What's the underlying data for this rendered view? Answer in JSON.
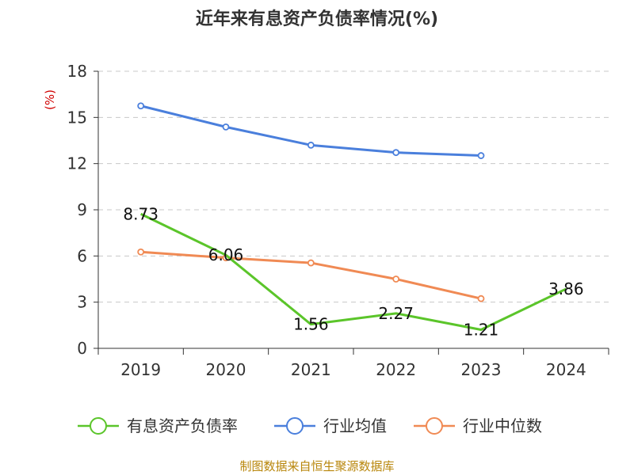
{
  "chart_data": {
    "type": "line",
    "title": "近年来有息资产负债率情况(%)",
    "unit_label": "(%)",
    "categories": [
      "2019",
      "2020",
      "2021",
      "2022",
      "2023",
      "2024"
    ],
    "y_ticks": [
      "0",
      "3",
      "6",
      "9",
      "12",
      "15",
      "18"
    ],
    "ylim": [
      0,
      18
    ],
    "grid": true,
    "legend_position": "bottom",
    "series": [
      {
        "name": "有息资产负债率",
        "color": "#5bc52a",
        "values": [
          8.73,
          6.06,
          1.56,
          2.27,
          1.21,
          3.86
        ],
        "labels": [
          "8.73",
          "6.06",
          "1.56",
          "2.27",
          "1.21",
          "3.86"
        ],
        "show_labels": true,
        "markers": false
      },
      {
        "name": "行业均值",
        "color": "#4a7fdc",
        "values": [
          15.75,
          14.38,
          13.2,
          12.72,
          12.52,
          null
        ],
        "show_labels": false,
        "markers": true
      },
      {
        "name": "行业中位数",
        "color": "#f08a54",
        "values": [
          6.26,
          5.88,
          5.55,
          4.5,
          3.23,
          null
        ],
        "show_labels": false,
        "markers": true
      }
    ]
  },
  "source_note": "制图数据来自恒生聚源数据库"
}
